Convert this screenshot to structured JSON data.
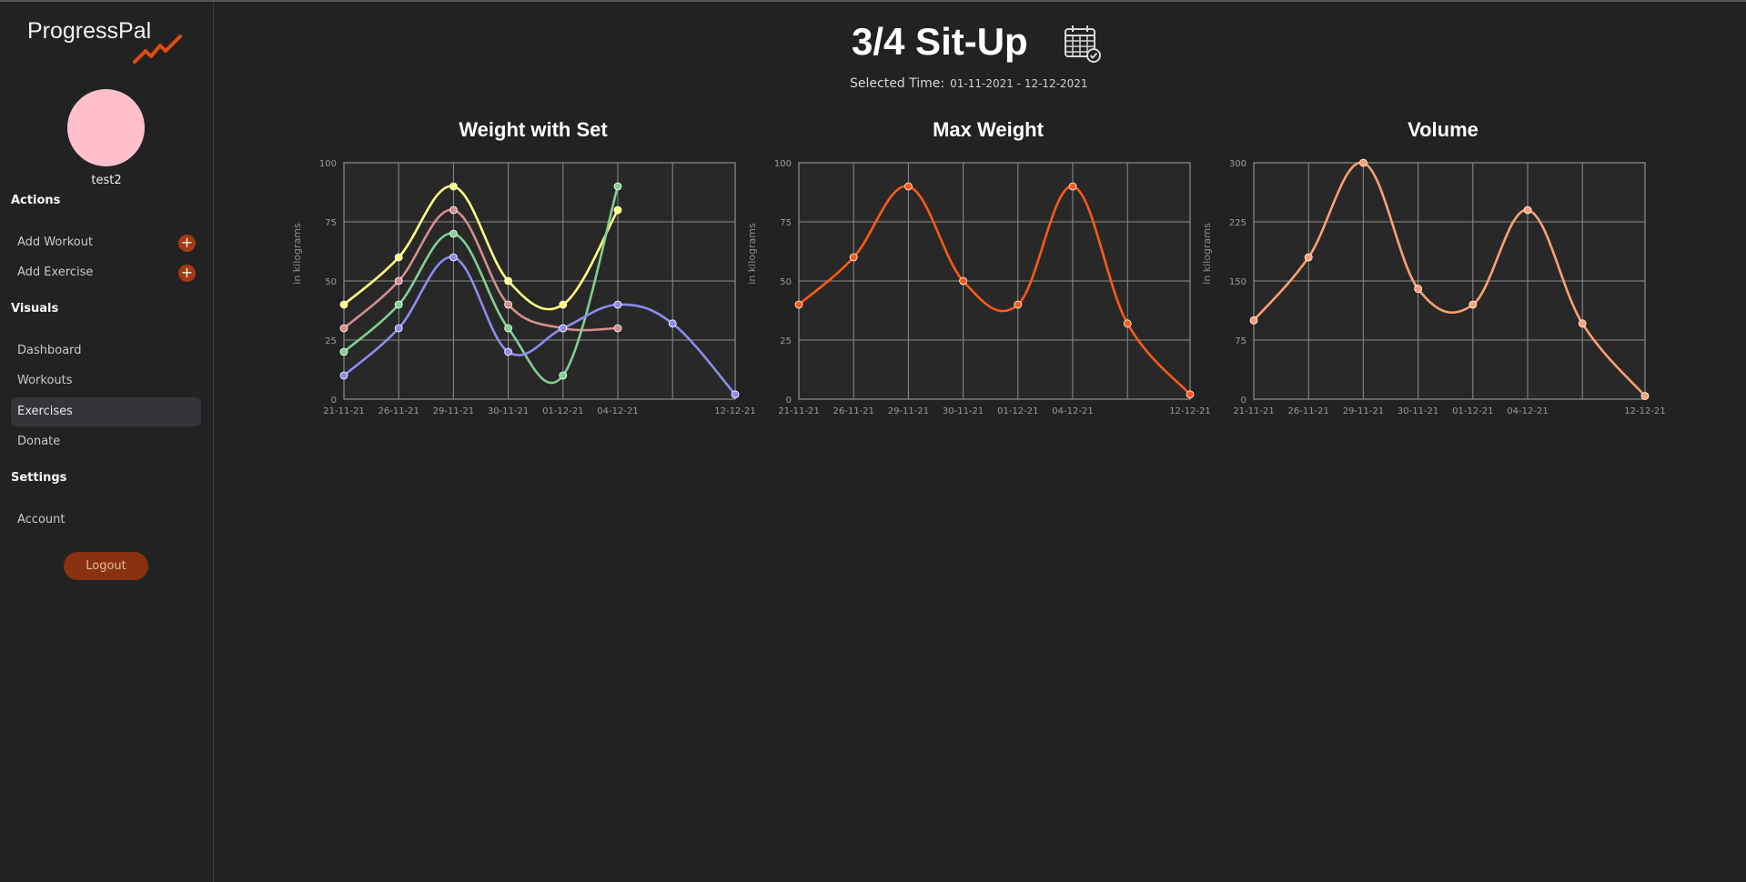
{
  "app": {
    "brand": "ProgressPal"
  },
  "user": {
    "name": "test2"
  },
  "sidebar": {
    "actions_label": "Actions",
    "actions": [
      {
        "label": "Add Workout",
        "icon": "plus-icon"
      },
      {
        "label": "Add Exercise",
        "icon": "plus-icon"
      }
    ],
    "visuals_label": "Visuals",
    "visuals": [
      {
        "label": "Dashboard"
      },
      {
        "label": "Workouts"
      },
      {
        "label": "Exercises",
        "active": true
      },
      {
        "label": "Donate"
      }
    ],
    "settings_label": "Settings",
    "settings": [
      {
        "label": "Account"
      }
    ],
    "logout_label": "Logout"
  },
  "header": {
    "title": "3/4 Sit-Up",
    "selected_time_label": "Selected Time:",
    "selected_time_range": "01-11-2021 - 12-12-2021",
    "calendar_icon": "calendar-icon"
  },
  "colors": {
    "accent": "#a23a12",
    "avatar": "#ffc0cb",
    "series_yellow": "#ffff80",
    "series_pink": "#d88c8c",
    "series_green": "#80d090",
    "series_purple": "#8c8cf0",
    "max_weight": "#ff5a14",
    "volume": "#ffa070"
  },
  "chart_data": [
    {
      "type": "line",
      "title": "Weight with Set",
      "ylabel": "in kilograms",
      "ylim": [
        0,
        100
      ],
      "yticks": [
        0,
        25,
        50,
        75,
        100
      ],
      "categories": [
        "21-11-21",
        "26-11-21",
        "29-11-21",
        "30-11-21",
        "01-12-21",
        "04-12-21",
        "",
        "12-12-21"
      ],
      "series": [
        {
          "color": "#ffff80",
          "values": [
            40,
            60,
            90,
            50,
            40,
            80,
            null,
            null
          ]
        },
        {
          "color": "#d88c8c",
          "values": [
            30,
            50,
            80,
            40,
            30,
            30,
            null,
            null
          ]
        },
        {
          "color": "#80d090",
          "values": [
            20,
            40,
            70,
            30,
            10,
            90,
            null,
            null
          ]
        },
        {
          "color": "#8c8cf0",
          "values": [
            10,
            30,
            60,
            20,
            30,
            40,
            32,
            2
          ]
        }
      ],
      "grid": true
    },
    {
      "type": "line",
      "title": "Max Weight",
      "ylabel": "in kilograms",
      "ylim": [
        0,
        100
      ],
      "yticks": [
        0,
        25,
        50,
        75,
        100
      ],
      "categories": [
        "21-11-21",
        "26-11-21",
        "29-11-21",
        "30-11-21",
        "01-12-21",
        "04-12-21",
        "",
        "12-12-21"
      ],
      "series": [
        {
          "color": "#ff5a14",
          "values": [
            40,
            60,
            90,
            50,
            40,
            90,
            32,
            2
          ]
        }
      ],
      "grid": true
    },
    {
      "type": "line",
      "title": "Volume",
      "ylabel": "in kilograms",
      "ylim": [
        0,
        300
      ],
      "yticks": [
        0,
        75,
        150,
        225,
        300
      ],
      "categories": [
        "21-11-21",
        "26-11-21",
        "29-11-21",
        "30-11-21",
        "01-12-21",
        "04-12-21",
        "",
        "12-12-21"
      ],
      "series": [
        {
          "color": "#ffa070",
          "values": [
            100,
            180,
            300,
            140,
            120,
            240,
            96,
            4
          ]
        }
      ],
      "grid": true
    }
  ]
}
